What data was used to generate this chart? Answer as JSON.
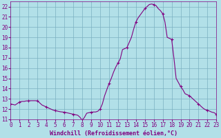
{
  "title": "",
  "xlabel": "Windchill (Refroidissement éolien,°C)",
  "ylabel": "",
  "xlim": [
    0,
    23
  ],
  "ylim": [
    11,
    22.5
  ],
  "yticks": [
    11,
    12,
    13,
    14,
    15,
    16,
    17,
    18,
    19,
    20,
    21,
    22
  ],
  "xticks": [
    0,
    1,
    2,
    3,
    4,
    5,
    6,
    7,
    8,
    9,
    10,
    11,
    12,
    13,
    14,
    15,
    16,
    17,
    18,
    19,
    20,
    21,
    22,
    23
  ],
  "line_color": "#800080",
  "marker_color": "#800080",
  "bg_color": "#b2e0e8",
  "grid_color": "#7ab0c0",
  "axis_color": "#800080",
  "x": [
    0,
    0.25,
    0.5,
    0.75,
    1,
    1.25,
    1.5,
    1.75,
    2,
    2.25,
    2.5,
    2.75,
    3,
    3.25,
    3.5,
    3.75,
    4,
    4.25,
    4.5,
    4.75,
    5,
    5.25,
    5.5,
    5.75,
    6,
    6.25,
    6.5,
    6.75,
    7,
    7.25,
    7.5,
    7.75,
    8,
    8.25,
    8.5,
    8.75,
    9,
    9.25,
    9.5,
    9.75,
    10,
    10.25,
    10.5,
    10.75,
    11,
    11.25,
    11.5,
    11.75,
    12,
    12.25,
    12.5,
    12.75,
    13,
    13.25,
    13.5,
    13.75,
    14,
    14.25,
    14.5,
    14.75,
    15,
    15.25,
    15.5,
    15.75,
    16,
    16.25,
    16.5,
    16.75,
    17,
    17.25,
    17.5,
    17.75,
    18,
    18.25,
    18.5,
    18.75,
    19,
    19.25,
    19.5,
    19.75,
    20,
    20.25,
    20.5,
    20.75,
    21,
    21.25,
    21.5,
    21.75,
    22,
    22.25,
    22.5,
    22.75,
    23
  ],
  "y": [
    12.5,
    12.45,
    12.4,
    12.55,
    12.7,
    12.75,
    12.75,
    12.8,
    12.8,
    12.82,
    12.82,
    12.82,
    12.8,
    12.6,
    12.4,
    12.3,
    12.2,
    12.1,
    12.0,
    11.9,
    11.85,
    11.8,
    11.75,
    11.72,
    11.7,
    11.65,
    11.6,
    11.55,
    11.5,
    11.45,
    11.4,
    11.2,
    10.9,
    11.2,
    11.6,
    11.65,
    11.7,
    11.72,
    11.72,
    11.8,
    12.0,
    12.5,
    13.3,
    13.9,
    14.5,
    15.0,
    15.6,
    16.1,
    16.5,
    16.9,
    17.8,
    17.9,
    18.0,
    18.5,
    19.0,
    19.8,
    20.5,
    20.9,
    21.2,
    21.5,
    21.8,
    22.0,
    22.2,
    22.25,
    22.2,
    22.1,
    21.8,
    21.6,
    21.3,
    20.5,
    19.0,
    18.9,
    18.8,
    17.0,
    15.0,
    14.6,
    14.2,
    13.9,
    13.5,
    13.4,
    13.3,
    13.1,
    12.9,
    12.7,
    12.5,
    12.3,
    12.1,
    11.95,
    11.9,
    11.8,
    11.7,
    11.65,
    11.5
  ],
  "marker_x": [
    0,
    1,
    2,
    3,
    4,
    5,
    6,
    7,
    8,
    9,
    10,
    11,
    12,
    13,
    14,
    15,
    16,
    17,
    18,
    19,
    20,
    21,
    22,
    23
  ],
  "marker_y": [
    12.5,
    12.7,
    12.8,
    12.8,
    12.2,
    11.85,
    11.7,
    11.5,
    10.9,
    11.7,
    12.0,
    14.5,
    16.5,
    18.0,
    20.5,
    21.8,
    22.2,
    21.3,
    18.8,
    14.2,
    13.3,
    12.5,
    11.9,
    11.5
  ],
  "xlabel_fontsize": 6,
  "tick_fontsize": 5.5
}
